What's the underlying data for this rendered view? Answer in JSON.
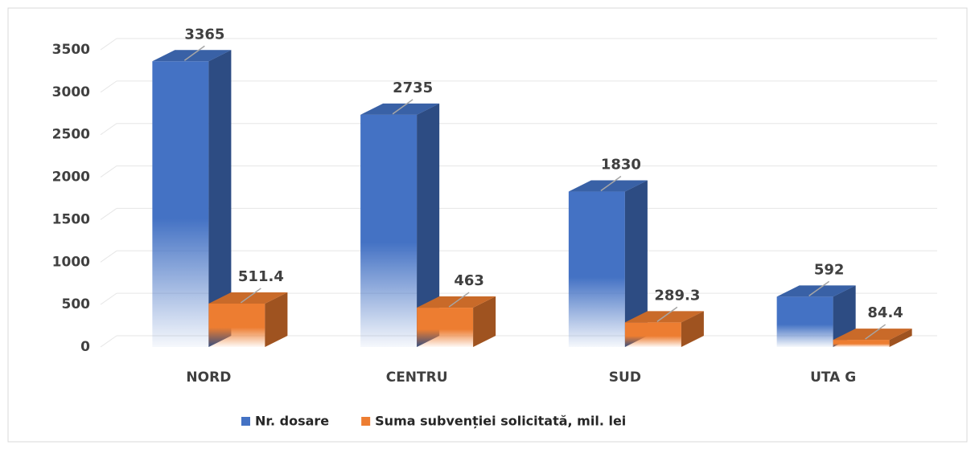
{
  "chart_data": {
    "type": "bar3d",
    "categories": [
      "NORD",
      "CENTRU",
      "SUD",
      "UTA G"
    ],
    "series": [
      {
        "name": "Nr. dosare",
        "color": "#4472c4",
        "values": [
          3365,
          2735,
          1830,
          592
        ]
      },
      {
        "name": "Suma subvenției solicitată, mil. lei",
        "color": "#ed7d31",
        "values": [
          511.4,
          463,
          289.3,
          84.4
        ]
      }
    ],
    "ylim": [
      0,
      3500
    ],
    "yticks": [
      0,
      500,
      1000,
      1500,
      2000,
      2500,
      3000,
      3500
    ],
    "grid": true,
    "legend": "bottom"
  }
}
